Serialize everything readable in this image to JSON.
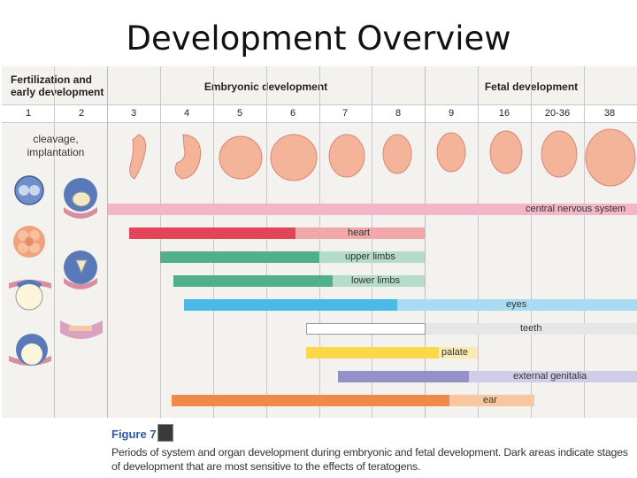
{
  "slide": {
    "title": "Development Overview"
  },
  "headers": {
    "fertilization": [
      "Fertilization and",
      "early development"
    ],
    "embryonic": "Embryonic development",
    "fetal": "Fetal development"
  },
  "weeks": [
    "1",
    "2",
    "3",
    "4",
    "5",
    "6",
    "7",
    "8",
    "9",
    "16",
    "20-36",
    "38"
  ],
  "early_stages": [
    "cleavage,",
    "implantation"
  ],
  "organs": [
    {
      "label": "central nervous system",
      "dark": "#f3b5c9",
      "light": "#f3b5c9"
    },
    {
      "label": "heart",
      "dark": "#e2455a",
      "light": "#f2a7a9"
    },
    {
      "label": "upper limbs",
      "dark": "#4fb08a",
      "light": "#b4dcc8"
    },
    {
      "label": "lower limbs",
      "dark": "#4fb08a",
      "light": "#b4dcc8"
    },
    {
      "label": "eyes",
      "dark": "#4ab9e6",
      "light": "#a9dcf2"
    },
    {
      "label": "teeth",
      "dark": "#ffffff",
      "light": "#e6e6e6"
    },
    {
      "label": "palate",
      "dark": "#fbd84a",
      "light": "#fbeab0"
    },
    {
      "label": "external genitalia",
      "dark": "#9490c8",
      "light": "#cfcde7"
    },
    {
      "label": "ear",
      "dark": "#f08a48",
      "light": "#f8c7a0"
    }
  ],
  "figure": {
    "label": "Figure 7",
    "caption": "Periods of system and organ development during embryonic and fetal development. Dark areas indicate stages of development that are most sensitive to the effects of teratogens."
  }
}
